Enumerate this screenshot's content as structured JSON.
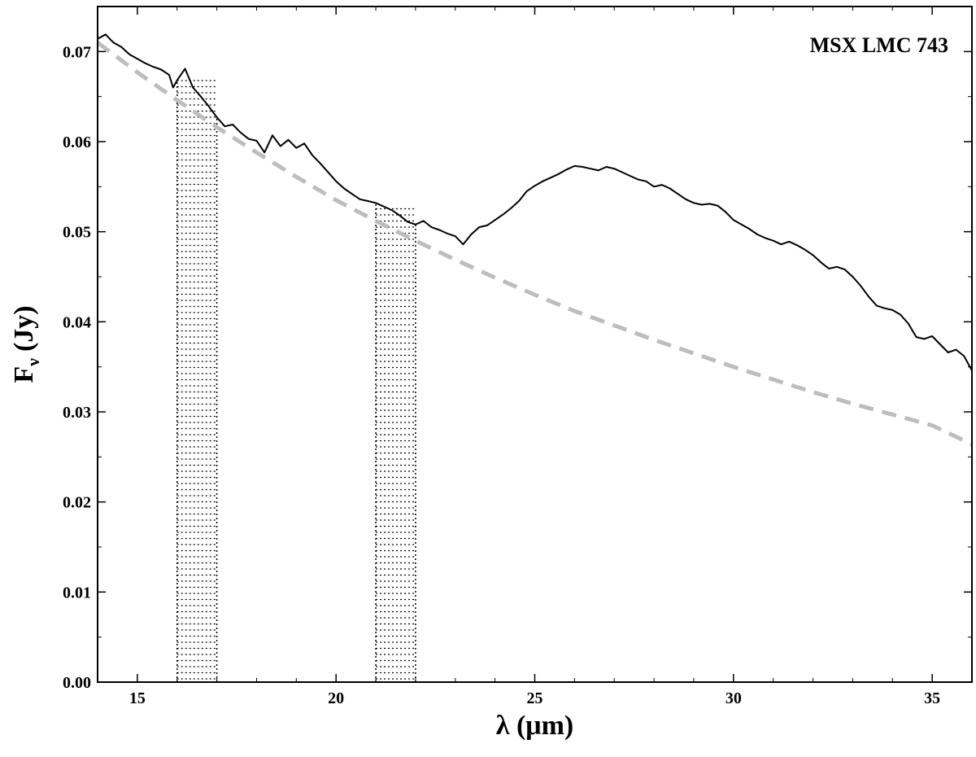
{
  "chart_data": {
    "type": "line",
    "title": "",
    "annotation": "MSX LMC 743",
    "xlabel": "λ (μm)",
    "ylabel_main": "F",
    "ylabel_sub": "ν",
    "ylabel_unit": "(Jy)",
    "xlim": [
      14,
      36
    ],
    "ylim": [
      0,
      0.075
    ],
    "xticks": [
      15,
      20,
      25,
      30,
      35
    ],
    "yticks": [
      0.0,
      0.01,
      0.02,
      0.03,
      0.04,
      0.05,
      0.06,
      0.07
    ],
    "ytick_labels": [
      "0.00",
      "0.01",
      "0.02",
      "0.03",
      "0.04",
      "0.05",
      "0.06",
      "0.07"
    ],
    "grid": false,
    "shaded_regions": [
      {
        "x0": 16,
        "x1": 17,
        "style": "dotted-hatch"
      },
      {
        "x0": 21,
        "x1": 22,
        "style": "dotted-hatch"
      }
    ],
    "series": [
      {
        "role": "spectrum",
        "color": "#000000",
        "style": "solid",
        "points": [
          [
            14.0,
            0.0714
          ],
          [
            14.2,
            0.0719
          ],
          [
            14.4,
            0.071
          ],
          [
            14.6,
            0.0705
          ],
          [
            14.8,
            0.0697
          ],
          [
            15.0,
            0.0692
          ],
          [
            15.2,
            0.0687
          ],
          [
            15.4,
            0.0683
          ],
          [
            15.6,
            0.068
          ],
          [
            15.8,
            0.0674
          ],
          [
            15.9,
            0.066
          ],
          [
            16.0,
            0.0668
          ],
          [
            16.2,
            0.0681
          ],
          [
            16.4,
            0.066
          ],
          [
            16.6,
            0.065
          ],
          [
            16.8,
            0.0639
          ],
          [
            17.0,
            0.0627
          ],
          [
            17.2,
            0.0617
          ],
          [
            17.4,
            0.0619
          ],
          [
            17.6,
            0.061
          ],
          [
            17.8,
            0.0603
          ],
          [
            18.0,
            0.0601
          ],
          [
            18.2,
            0.0588
          ],
          [
            18.4,
            0.0607
          ],
          [
            18.6,
            0.0595
          ],
          [
            18.8,
            0.0602
          ],
          [
            19.0,
            0.0593
          ],
          [
            19.2,
            0.0598
          ],
          [
            19.4,
            0.0585
          ],
          [
            19.6,
            0.0576
          ],
          [
            19.8,
            0.0566
          ],
          [
            20.0,
            0.0556
          ],
          [
            20.2,
            0.0548
          ],
          [
            20.4,
            0.0542
          ],
          [
            20.6,
            0.0536
          ],
          [
            20.8,
            0.0534
          ],
          [
            21.0,
            0.0532
          ],
          [
            21.2,
            0.0528
          ],
          [
            21.4,
            0.0524
          ],
          [
            21.6,
            0.0518
          ],
          [
            21.8,
            0.0511
          ],
          [
            22.0,
            0.0508
          ],
          [
            22.2,
            0.0512
          ],
          [
            22.4,
            0.0505
          ],
          [
            22.6,
            0.0502
          ],
          [
            22.8,
            0.0498
          ],
          [
            23.0,
            0.0495
          ],
          [
            23.2,
            0.0486
          ],
          [
            23.4,
            0.0497
          ],
          [
            23.6,
            0.0505
          ],
          [
            23.8,
            0.0507
          ],
          [
            24.0,
            0.0513
          ],
          [
            24.2,
            0.0519
          ],
          [
            24.4,
            0.0526
          ],
          [
            24.6,
            0.0534
          ],
          [
            24.8,
            0.0545
          ],
          [
            25.0,
            0.0551
          ],
          [
            25.2,
            0.0556
          ],
          [
            25.4,
            0.056
          ],
          [
            25.6,
            0.0564
          ],
          [
            25.8,
            0.0569
          ],
          [
            26.0,
            0.0573
          ],
          [
            26.2,
            0.0572
          ],
          [
            26.4,
            0.057
          ],
          [
            26.6,
            0.0568
          ],
          [
            26.8,
            0.0572
          ],
          [
            27.0,
            0.057
          ],
          [
            27.2,
            0.0566
          ],
          [
            27.4,
            0.0562
          ],
          [
            27.6,
            0.0558
          ],
          [
            27.8,
            0.0556
          ],
          [
            28.0,
            0.055
          ],
          [
            28.2,
            0.0552
          ],
          [
            28.4,
            0.0548
          ],
          [
            28.6,
            0.0542
          ],
          [
            28.8,
            0.0536
          ],
          [
            29.0,
            0.0532
          ],
          [
            29.2,
            0.053
          ],
          [
            29.4,
            0.0531
          ],
          [
            29.6,
            0.0529
          ],
          [
            29.8,
            0.0522
          ],
          [
            30.0,
            0.0513
          ],
          [
            30.2,
            0.0508
          ],
          [
            30.4,
            0.0503
          ],
          [
            30.6,
            0.0497
          ],
          [
            30.8,
            0.0493
          ],
          [
            31.0,
            0.049
          ],
          [
            31.2,
            0.0486
          ],
          [
            31.4,
            0.0489
          ],
          [
            31.6,
            0.0485
          ],
          [
            31.8,
            0.048
          ],
          [
            32.0,
            0.0474
          ],
          [
            32.2,
            0.0466
          ],
          [
            32.4,
            0.0459
          ],
          [
            32.6,
            0.0461
          ],
          [
            32.8,
            0.0458
          ],
          [
            33.0,
            0.045
          ],
          [
            33.2,
            0.044
          ],
          [
            33.4,
            0.0428
          ],
          [
            33.6,
            0.0418
          ],
          [
            33.8,
            0.0415
          ],
          [
            34.0,
            0.0413
          ],
          [
            34.2,
            0.0408
          ],
          [
            34.4,
            0.0398
          ],
          [
            34.6,
            0.0383
          ],
          [
            34.8,
            0.0381
          ],
          [
            35.0,
            0.0384
          ],
          [
            35.2,
            0.0375
          ],
          [
            35.4,
            0.0366
          ],
          [
            35.6,
            0.0369
          ],
          [
            35.8,
            0.0362
          ],
          [
            36.0,
            0.0346
          ]
        ]
      },
      {
        "role": "continuum",
        "color": "#bdbdbd",
        "style": "dashed",
        "points": [
          [
            14.0,
            0.071
          ],
          [
            15.0,
            0.0677
          ],
          [
            16.0,
            0.0646
          ],
          [
            17.0,
            0.0616
          ],
          [
            18.0,
            0.0588
          ],
          [
            19.0,
            0.0561
          ],
          [
            20.0,
            0.0535
          ],
          [
            21.0,
            0.0512
          ],
          [
            22.0,
            0.049
          ],
          [
            23.0,
            0.0469
          ],
          [
            24.0,
            0.0449
          ],
          [
            25.0,
            0.043
          ],
          [
            26.0,
            0.0412
          ],
          [
            27.0,
            0.0396
          ],
          [
            28.0,
            0.038
          ],
          [
            29.0,
            0.0365
          ],
          [
            30.0,
            0.035
          ],
          [
            31.0,
            0.0336
          ],
          [
            32.0,
            0.0322
          ],
          [
            33.0,
            0.0309
          ],
          [
            34.0,
            0.0297
          ],
          [
            35.0,
            0.0285
          ],
          [
            36.0,
            0.0264
          ]
        ]
      }
    ]
  }
}
